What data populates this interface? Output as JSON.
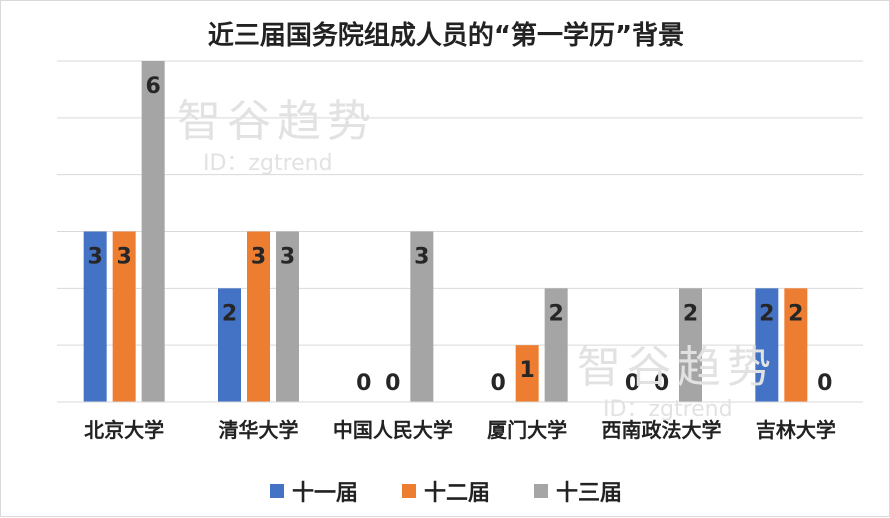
{
  "chart_data": {
    "type": "bar",
    "title": "近三届国务院组成人员的“第一学历”背景",
    "xlabel": "",
    "ylabel": "",
    "ylim": [
      0,
      6
    ],
    "grid": true,
    "legend_position": "bottom",
    "categories": [
      "北京大学",
      "清华大学",
      "中国人民大学",
      "厦门大学",
      "西南政法大学",
      "吉林大学"
    ],
    "series": [
      {
        "name": "十一届",
        "color": "#4472c4",
        "values": [
          3,
          2,
          0,
          0,
          0,
          2
        ]
      },
      {
        "name": "十二届",
        "color": "#ed7d31",
        "values": [
          3,
          3,
          0,
          1,
          0,
          2
        ]
      },
      {
        "name": "十三届",
        "color": "#a5a5a5",
        "values": [
          6,
          3,
          3,
          2,
          2,
          0
        ]
      }
    ]
  },
  "watermarks": [
    {
      "main": "智谷趋势",
      "sub": "ID：zgtrend"
    },
    {
      "main": "智谷趋势",
      "sub": "ID：zgtrend"
    }
  ]
}
